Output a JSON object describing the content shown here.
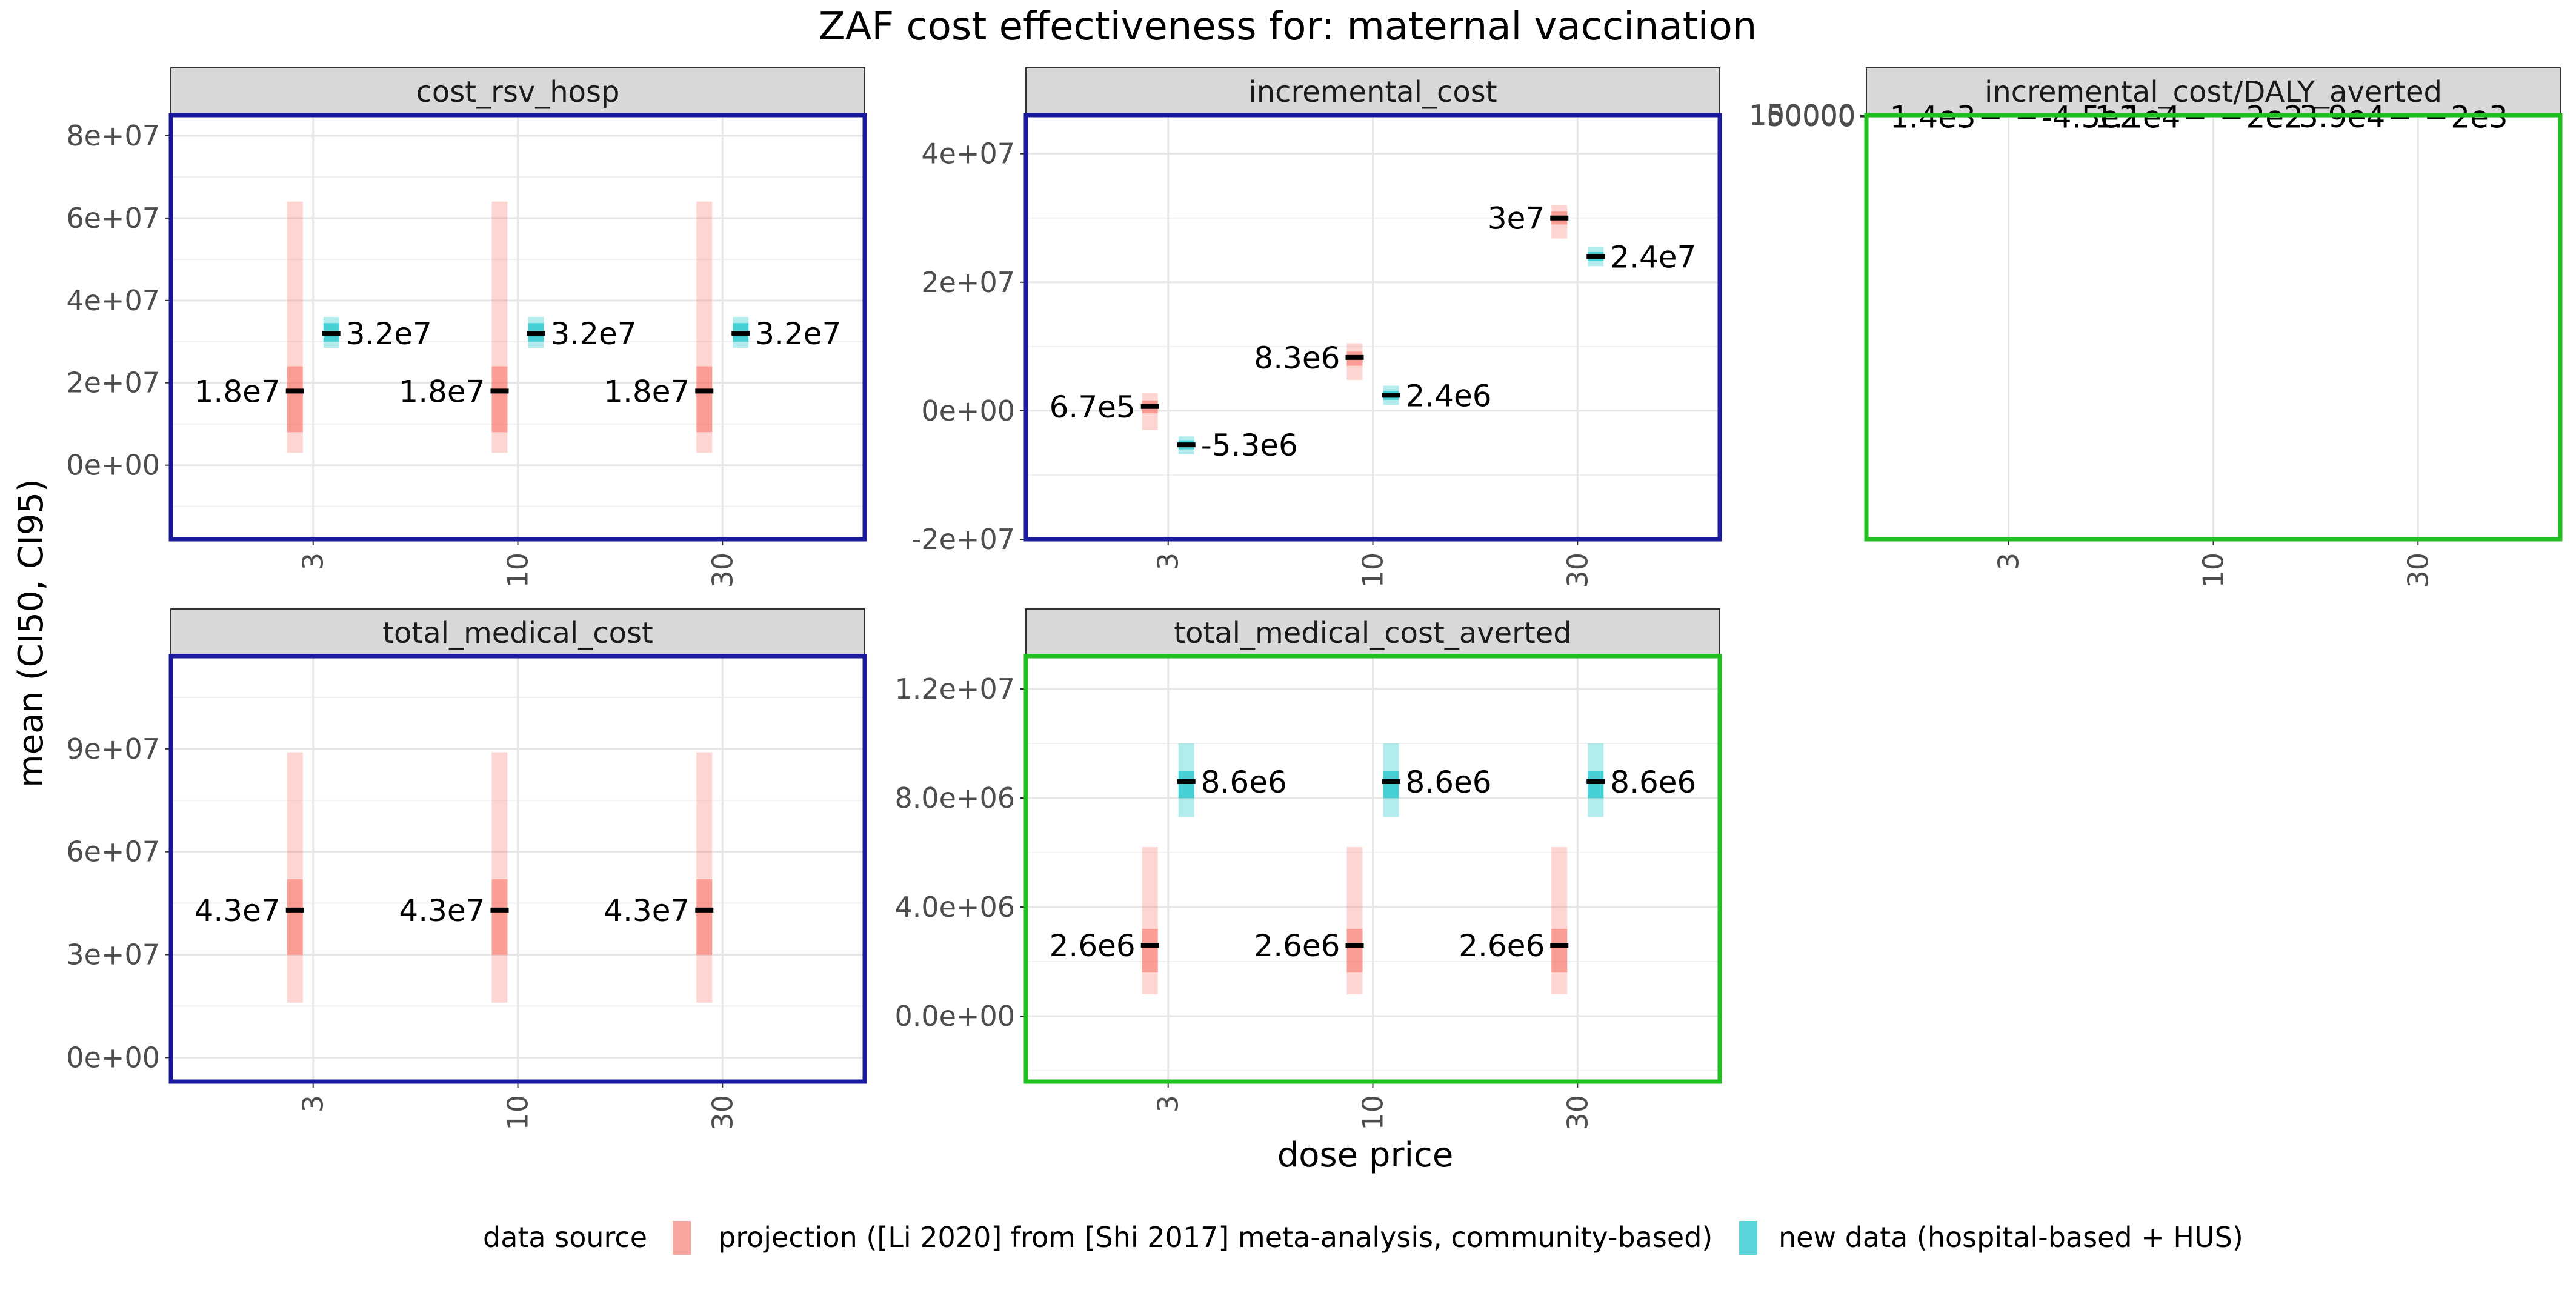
{
  "chart_data": {
    "type": "faceted-pointrange",
    "title": "ZAF cost effectiveness for: maternal vaccination",
    "xlabel": "dose price",
    "ylabel": "mean (CI50, CI95)",
    "x_categories": [
      "3",
      "10",
      "30"
    ],
    "legend": {
      "title": "data source",
      "position": "bottom",
      "entries": [
        {
          "label": "projection ([Li 2020] from [Shi 2017] meta-analysis, community-based)",
          "color": "#F8766D"
        },
        {
          "label": "new data (hospital-based + HUS)",
          "color": "#00BFC4"
        }
      ]
    },
    "panels": [
      {
        "name": "cost_rsv_hosp",
        "border_color": "#1a1a9e",
        "ylim": [
          -18000000,
          85000000
        ],
        "yticks": [
          0,
          20000000,
          40000000,
          60000000,
          80000000
        ],
        "ytick_labels": [
          "0e+00",
          "2e+07",
          "4e+07",
          "6e+07",
          "8e+07"
        ],
        "series": [
          {
            "name": "projection ([Li 2020] from [Shi 2017] meta-analysis, community-based)",
            "points": [
              {
                "x": "3",
                "mean": 18000000,
                "ci50": [
                  8000000,
                  24000000
                ],
                "ci95": [
                  3000000,
                  64000000
                ],
                "label": "1.8e7"
              },
              {
                "x": "10",
                "mean": 18000000,
                "ci50": [
                  8000000,
                  24000000
                ],
                "ci95": [
                  3000000,
                  64000000
                ],
                "label": "1.8e7"
              },
              {
                "x": "30",
                "mean": 18000000,
                "ci50": [
                  8000000,
                  24000000
                ],
                "ci95": [
                  3000000,
                  64000000
                ],
                "label": "1.8e7"
              }
            ]
          },
          {
            "name": "new data (hospital-based + HUS)",
            "points": [
              {
                "x": "3",
                "mean": 32000000,
                "ci50": [
                  30000000,
                  34500000
                ],
                "ci95": [
                  28500000,
                  36000000
                ],
                "label": "3.2e7"
              },
              {
                "x": "10",
                "mean": 32000000,
                "ci50": [
                  30000000,
                  34500000
                ],
                "ci95": [
                  28500000,
                  36000000
                ],
                "label": "3.2e7"
              },
              {
                "x": "30",
                "mean": 32000000,
                "ci50": [
                  30000000,
                  34500000
                ],
                "ci95": [
                  28500000,
                  36000000
                ],
                "label": "3.2e7"
              }
            ]
          }
        ]
      },
      {
        "name": "incremental_cost",
        "border_color": "#1a1a9e",
        "ylim": [
          -20000000,
          46000000
        ],
        "yticks": [
          -20000000,
          0,
          20000000,
          40000000
        ],
        "ytick_labels": [
          "-2e+07",
          "0e+00",
          "2e+07",
          "4e+07"
        ],
        "series": [
          {
            "name": "projection ([Li 2020] from [Shi 2017] meta-analysis, community-based)",
            "points": [
              {
                "x": "3",
                "mean": 670000,
                "ci50": [
                  -400000,
                  1600000
                ],
                "ci95": [
                  -3000000,
                  2800000
                ],
                "label": "6.7e5"
              },
              {
                "x": "10",
                "mean": 8300000,
                "ci50": [
                  7000000,
                  9200000
                ],
                "ci95": [
                  4800000,
                  10500000
                ],
                "label": "8.3e6"
              },
              {
                "x": "30",
                "mean": 30000000,
                "ci50": [
                  29000000,
                  31000000
                ],
                "ci95": [
                  26800000,
                  32000000
                ],
                "label": "3e7"
              }
            ]
          },
          {
            "name": "new data (hospital-based + HUS)",
            "points": [
              {
                "x": "3",
                "mean": -5300000,
                "ci50": [
                  -6000000,
                  -4600000
                ],
                "ci95": [
                  -6800000,
                  -4000000
                ],
                "label": "-5.3e6"
              },
              {
                "x": "10",
                "mean": 2400000,
                "ci50": [
                  1700000,
                  3100000
                ],
                "ci95": [
                  900000,
                  3900000
                ],
                "label": "2.4e6"
              },
              {
                "x": "30",
                "mean": 24000000,
                "ci50": [
                  23300000,
                  24700000
                ],
                "ci95": [
                  22500000,
                  25500000
                ],
                "label": "2.4e7"
              }
            ]
          }
        ]
      },
      {
        "name": "incremental_cost/DALY_averted",
        "border_color": "#1fbf1f",
        "ylim": [
          -43000000,
          165000
        ],
        "yticks": [
          0,
          50000,
          100000,
          150000
        ],
        "ytick_labels": [
          "0",
          "50000",
          "100000",
          "150000"
        ],
        "series": [
          {
            "name": "projection ([Li 2020] from [Shi 2017] meta-analysis, community-based)",
            "points": [
              {
                "x": "3",
                "mean": 1400,
                "ci50": [
                  -500,
                  3500
                ],
                "ci95": [
                  -2000,
                  7000
                ],
                "label": "1.4e3"
              },
              {
                "x": "10",
                "mean": 11000,
                "ci50": [
                  4500,
                  15000
                ],
                "ci95": [
                  1500,
                  36000
                ],
                "label": "1.1e4"
              },
              {
                "x": "30",
                "mean": 39000,
                "ci50": [
                  20000,
                  49000
                ],
                "ci95": [
                  6000,
                  122000
                ],
                "label": "3.9e4"
              }
            ]
          },
          {
            "name": "new data (hospital-based + HUS)",
            "points": [
              {
                "x": "3",
                "mean": -450,
                "ci50": [
                  -700,
                  -200
                ],
                "ci95": [
                  -900,
                  0
                ],
                "label": "-4.5e2"
              },
              {
                "x": "10",
                "mean": 200,
                "ci50": [
                  100,
                  300
                ],
                "ci95": [
                  0,
                  400
                ],
                "label": "2e2"
              },
              {
                "x": "30",
                "mean": 2000,
                "ci50": [
                  1700,
                  2300
                ],
                "ci95": [
                  1400,
                  2600
                ],
                "label": "2e3"
              }
            ]
          }
        ]
      },
      {
        "name": "total_medical_cost",
        "border_color": "#1a1a9e",
        "ylim": [
          -7000000,
          117000000
        ],
        "yticks": [
          0,
          30000000,
          60000000,
          90000000
        ],
        "ytick_labels": [
          "0e+00",
          "3e+07",
          "6e+07",
          "9e+07"
        ],
        "series": [
          {
            "name": "projection ([Li 2020] from [Shi 2017] meta-analysis, community-based)",
            "points": [
              {
                "x": "3",
                "mean": 43000000,
                "ci50": [
                  30000000,
                  52000000
                ],
                "ci95": [
                  16000000,
                  89000000
                ],
                "label": "4.3e7"
              },
              {
                "x": "10",
                "mean": 43000000,
                "ci50": [
                  30000000,
                  52000000
                ],
                "ci95": [
                  16000000,
                  89000000
                ],
                "label": "4.3e7"
              },
              {
                "x": "30",
                "mean": 43000000,
                "ci50": [
                  30000000,
                  52000000
                ],
                "ci95": [
                  16000000,
                  89000000
                ],
                "label": "4.3e7"
              }
            ]
          }
        ]
      },
      {
        "name": "total_medical_cost_averted",
        "border_color": "#1fbf1f",
        "ylim": [
          -2400000,
          13200000
        ],
        "yticks": [
          0,
          4000000,
          8000000,
          12000000
        ],
        "ytick_labels": [
          "0.0e+00",
          "4.0e+06",
          "8.0e+06",
          "1.2e+07"
        ],
        "series": [
          {
            "name": "projection ([Li 2020] from [Shi 2017] meta-analysis, community-based)",
            "points": [
              {
                "x": "3",
                "mean": 2600000,
                "ci50": [
                  1600000,
                  3200000
                ],
                "ci95": [
                  800000,
                  6200000
                ],
                "label": "2.6e6"
              },
              {
                "x": "10",
                "mean": 2600000,
                "ci50": [
                  1600000,
                  3200000
                ],
                "ci95": [
                  800000,
                  6200000
                ],
                "label": "2.6e6"
              },
              {
                "x": "30",
                "mean": 2600000,
                "ci50": [
                  1600000,
                  3200000
                ],
                "ci95": [
                  800000,
                  6200000
                ],
                "label": "2.6e6"
              }
            ]
          },
          {
            "name": "new data (hospital-based + HUS)",
            "points": [
              {
                "x": "3",
                "mean": 8600000,
                "ci50": [
                  8000000,
                  9000000
                ],
                "ci95": [
                  7300000,
                  10000000
                ],
                "label": "8.6e6"
              },
              {
                "x": "10",
                "mean": 8600000,
                "ci50": [
                  8000000,
                  9000000
                ],
                "ci95": [
                  7300000,
                  10000000
                ],
                "label": "8.6e6"
              },
              {
                "x": "30",
                "mean": 8600000,
                "ci50": [
                  8000000,
                  9000000
                ],
                "ci95": [
                  7300000,
                  10000000
                ],
                "label": "8.6e6"
              }
            ]
          }
        ]
      }
    ]
  }
}
